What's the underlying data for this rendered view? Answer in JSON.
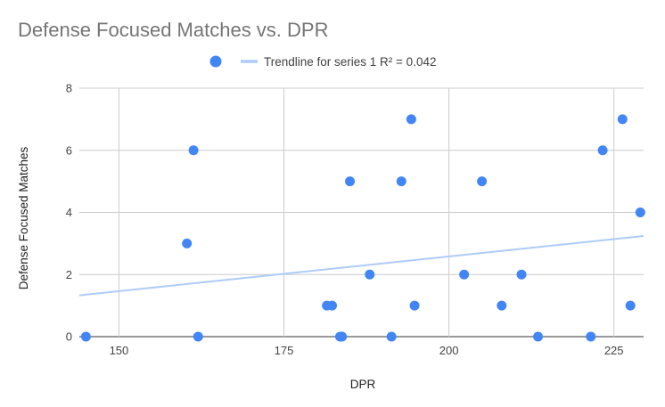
{
  "chart_data": {
    "type": "scatter",
    "title": "Defense Focused Matches vs. DPR",
    "xlabel": "DPR",
    "ylabel": "Defense Focused Matches",
    "xlim": [
      144,
      229.5
    ],
    "ylim": [
      0,
      8
    ],
    "x_ticks": [
      "150",
      "175",
      "200",
      "225"
    ],
    "y_ticks": [
      "0",
      "2",
      "4",
      "6",
      "8"
    ],
    "grid": true,
    "legend_position": "top",
    "marker_color": "#4285F4",
    "trendline_color": "#AECBFA",
    "trendline_label": "Trendline for series 1 R² = 0.042",
    "trendline": {
      "x": [
        144,
        229.5
      ],
      "y": [
        1.33,
        3.24
      ]
    },
    "series": [
      {
        "points": [
          [
            145,
            0
          ],
          [
            160.3,
            3
          ],
          [
            161.3,
            6
          ],
          [
            162,
            0
          ],
          [
            181.5,
            1
          ],
          [
            182.3,
            1
          ],
          [
            183.5,
            0
          ],
          [
            183.8,
            0
          ],
          [
            185,
            5
          ],
          [
            188,
            2
          ],
          [
            191.3,
            0
          ],
          [
            192.8,
            5
          ],
          [
            194.3,
            7
          ],
          [
            194.8,
            1
          ],
          [
            202.3,
            2
          ],
          [
            205,
            5
          ],
          [
            208,
            1
          ],
          [
            211,
            2
          ],
          [
            213.5,
            0
          ],
          [
            221.5,
            0
          ],
          [
            223.3,
            6
          ],
          [
            226.3,
            7
          ],
          [
            227.5,
            1
          ],
          [
            229,
            4
          ]
        ]
      }
    ]
  }
}
